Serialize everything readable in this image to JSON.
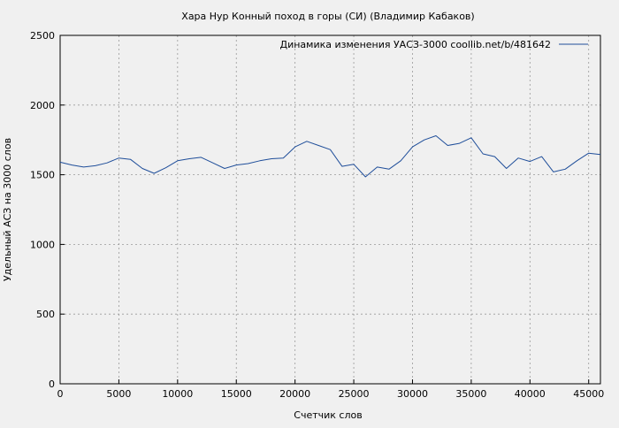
{
  "chart_data": {
    "type": "line",
    "title": "Хара Нур Конный поход в горы (СИ) (Владимир Кабаков)",
    "xlabel": "Счетчик слов",
    "ylabel": "Удельный АСЗ на 3000 слов",
    "xlim": [
      0,
      46000
    ],
    "ylim": [
      0,
      2500
    ],
    "x_ticks": [
      0,
      5000,
      10000,
      15000,
      20000,
      25000,
      30000,
      35000,
      40000,
      45000
    ],
    "y_ticks": [
      0,
      500,
      1000,
      1500,
      2000,
      2500
    ],
    "grid": true,
    "legend_position": "top-right",
    "series": [
      {
        "name": "Динамика изменения УАСЗ-3000  coollib.net/b/481642",
        "color": "#1f4e9a",
        "x": [
          0,
          1000,
          2000,
          3000,
          4000,
          5000,
          6000,
          7000,
          8000,
          9000,
          10000,
          11000,
          12000,
          13000,
          14000,
          15000,
          16000,
          17000,
          18000,
          19000,
          20000,
          21000,
          22000,
          23000,
          24000,
          25000,
          26000,
          27000,
          28000,
          29000,
          30000,
          31000,
          32000,
          33000,
          34000,
          35000,
          36000,
          37000,
          38000,
          39000,
          40000,
          41000,
          42000,
          43000,
          44000,
          45000,
          46000
        ],
        "y": [
          1590,
          1570,
          1555,
          1565,
          1585,
          1620,
          1610,
          1545,
          1510,
          1550,
          1600,
          1615,
          1625,
          1585,
          1545,
          1570,
          1580,
          1600,
          1615,
          1620,
          1700,
          1740,
          1710,
          1680,
          1560,
          1575,
          1485,
          1555,
          1540,
          1600,
          1700,
          1750,
          1780,
          1710,
          1725,
          1765,
          1650,
          1630,
          1545,
          1620,
          1595,
          1630,
          1520,
          1540,
          1600,
          1655,
          1645
        ]
      }
    ]
  }
}
